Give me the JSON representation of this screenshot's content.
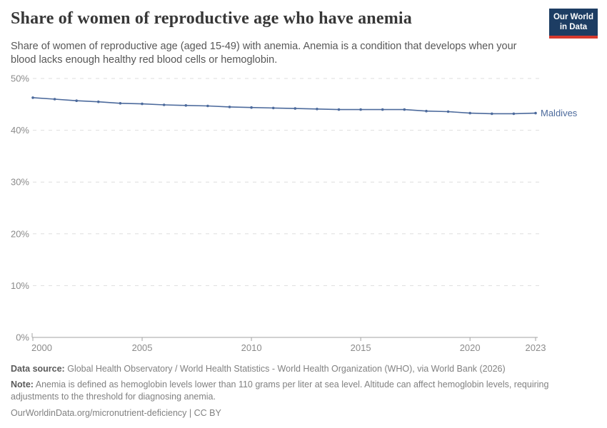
{
  "header": {
    "title": "Share of women of reproductive age who have anemia",
    "subtitle": "Share of women of reproductive age (aged 15-49) with anemia. Anemia is a condition that develops when your blood lacks enough healthy red blood cells or hemoglobin.",
    "logo": {
      "line1": "Our World",
      "line2": "in Data",
      "bg_color": "#1d3d63",
      "accent_color": "#d6392e"
    }
  },
  "chart_data": {
    "type": "line",
    "title": "Share of women of reproductive age who have anemia",
    "xlabel": "",
    "ylabel": "",
    "xlim": [
      2000,
      2023
    ],
    "ylim": [
      0,
      50
    ],
    "grid": "dashed-horizontal",
    "legend_position": "end-of-line",
    "x": [
      2000,
      2001,
      2002,
      2003,
      2004,
      2005,
      2006,
      2007,
      2008,
      2009,
      2010,
      2011,
      2012,
      2013,
      2014,
      2015,
      2016,
      2017,
      2018,
      2019,
      2020,
      2021,
      2022,
      2023
    ],
    "series": [
      {
        "name": "Maldives",
        "color": "#4C6A9C",
        "values": [
          46.3,
          46.0,
          45.7,
          45.5,
          45.2,
          45.1,
          44.9,
          44.8,
          44.7,
          44.5,
          44.4,
          44.3,
          44.2,
          44.1,
          44.0,
          44.0,
          44.0,
          44.0,
          43.7,
          43.6,
          43.3,
          43.2,
          43.2,
          43.3
        ]
      }
    ],
    "x_ticks": [
      {
        "value": 2000,
        "label": "2000"
      },
      {
        "value": 2005,
        "label": "2005"
      },
      {
        "value": 2010,
        "label": "2010"
      },
      {
        "value": 2015,
        "label": "2015"
      },
      {
        "value": 2020,
        "label": "2020"
      },
      {
        "value": 2023,
        "label": "2023"
      }
    ],
    "y_ticks": [
      {
        "value": 0,
        "label": "0%"
      },
      {
        "value": 10,
        "label": "10%"
      },
      {
        "value": 20,
        "label": "20%"
      },
      {
        "value": 30,
        "label": "30%"
      },
      {
        "value": 40,
        "label": "40%"
      },
      {
        "value": 50,
        "label": "50%"
      }
    ]
  },
  "footer": {
    "data_source_label": "Data source:",
    "data_source_text": "Global Health Observatory / World Health Statistics - World Health Organization (WHO), via World Bank (2026)",
    "note_label": "Note:",
    "note_text": "Anemia is defined as hemoglobin levels lower than 110 grams per liter at sea level. Altitude can affect hemoglobin levels, requiring adjustments to the threshold for diagnosing anemia.",
    "url": "OurWorldinData.org/micronutrient-deficiency",
    "separator": "|",
    "license": "CC BY"
  }
}
